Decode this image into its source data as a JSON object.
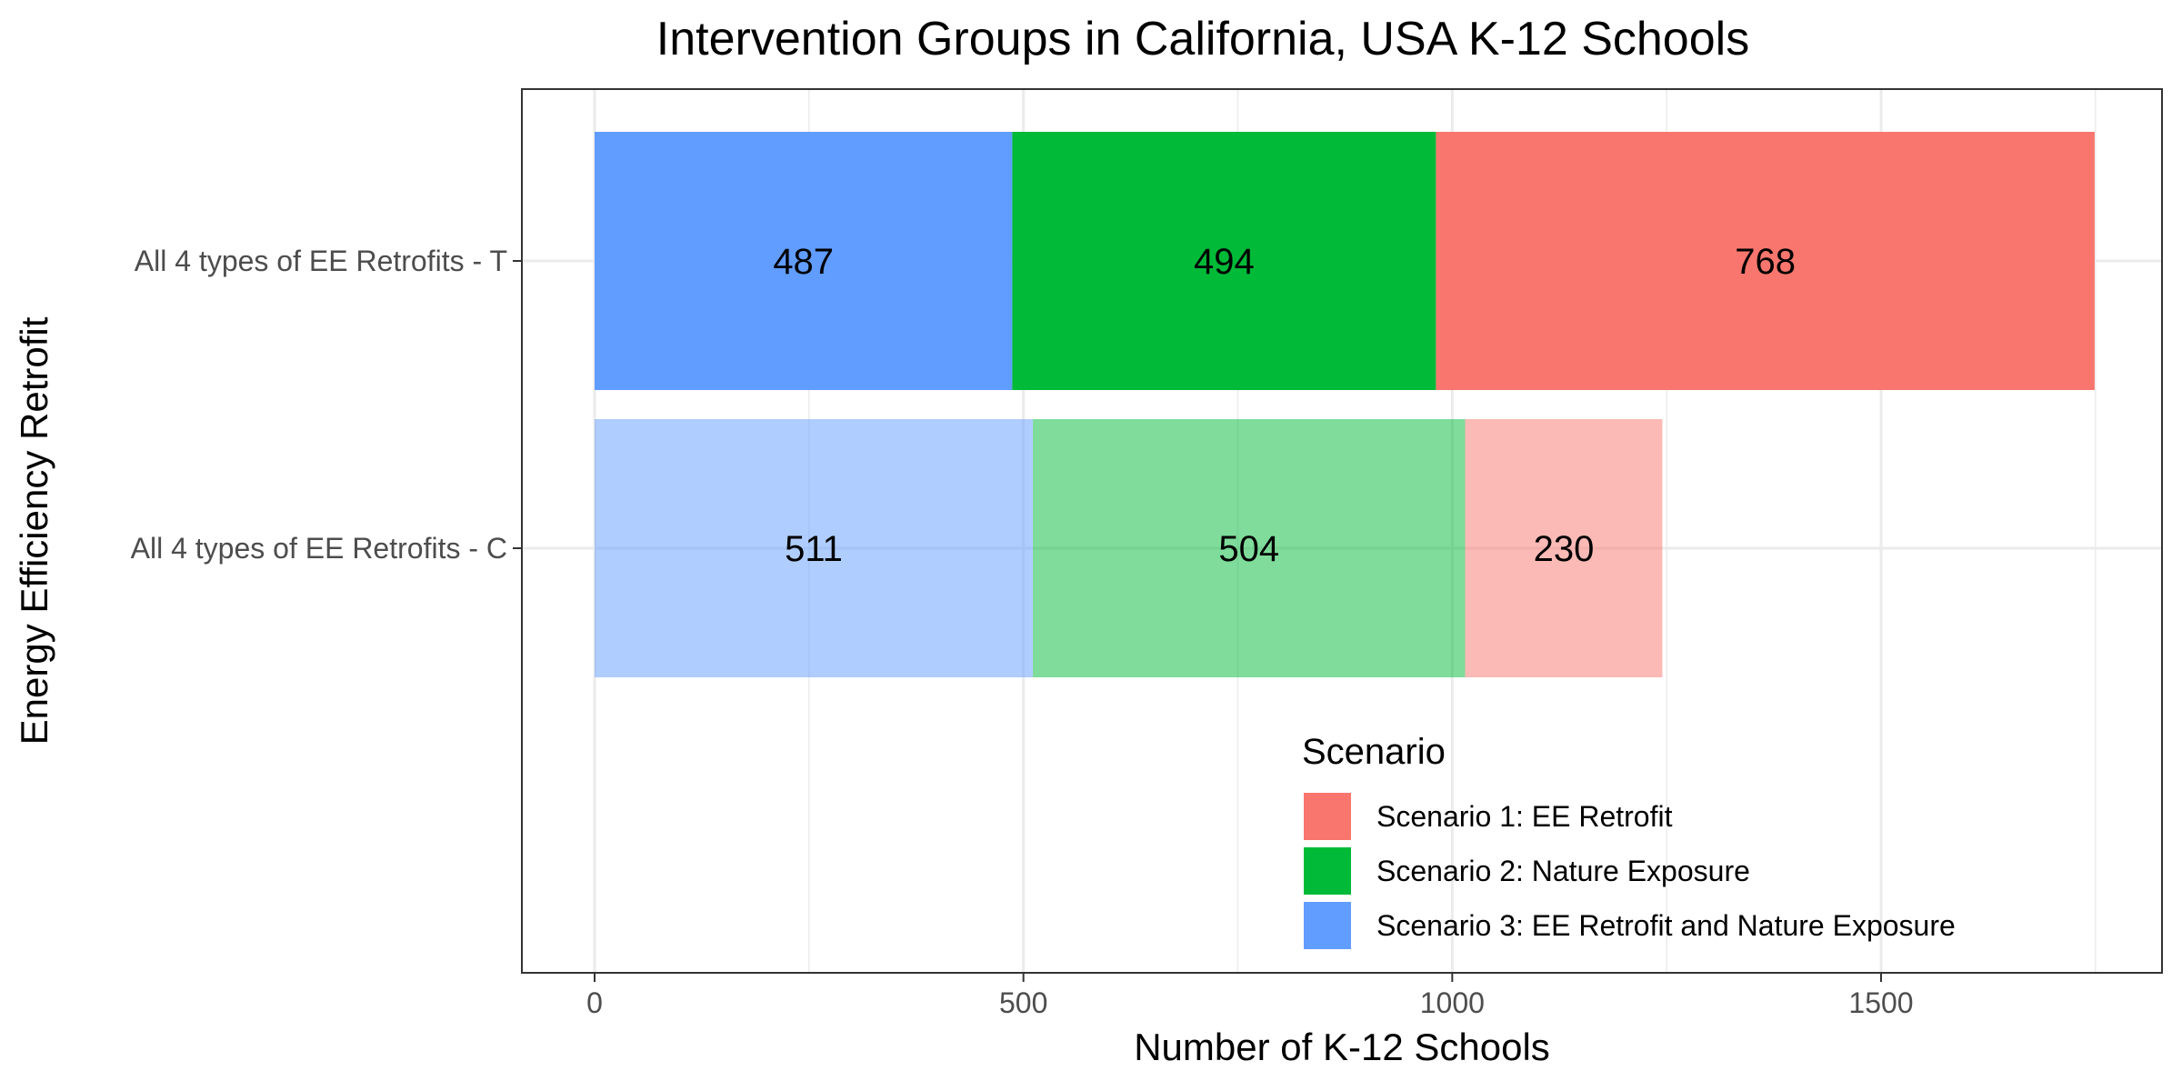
{
  "chart_data": {
    "type": "bar",
    "orientation": "horizontal",
    "stacked": true,
    "title": "Intervention Groups in California, USA K-12 Schools",
    "xlabel": "Number of K-12 Schools",
    "ylabel": "Energy Efficiency Retrofit",
    "categories": [
      "All 4 types of EE Retrofits - T",
      "All 4 types of EE Retrofits - C"
    ],
    "x_ticks": [
      0,
      500,
      1000,
      1500
    ],
    "xlim": [
      0,
      1750
    ],
    "series": [
      {
        "name": "Scenario 3: EE Retrofit and Nature Exposure",
        "values": [
          487,
          511
        ],
        "color": "#619CFF"
      },
      {
        "name": "Scenario 2: Nature Exposure",
        "values": [
          494,
          504
        ],
        "color": "#00BA38"
      },
      {
        "name": "Scenario 1: EE Retrofit",
        "values": [
          768,
          230
        ],
        "color": "#F8766D"
      }
    ],
    "faded_categories": [
      "All 4 types of EE Retrofits - C"
    ],
    "grid": true,
    "legend": {
      "title": "Scenario",
      "placement": "inside-bottom-right",
      "entries": [
        {
          "label": "Scenario 1: EE Retrofit",
          "color": "#F8766D"
        },
        {
          "label": "Scenario 2: Nature Exposure",
          "color": "#00BA38"
        },
        {
          "label": "Scenario 3: EE Retrofit and Nature Exposure",
          "color": "#619CFF"
        }
      ]
    }
  }
}
